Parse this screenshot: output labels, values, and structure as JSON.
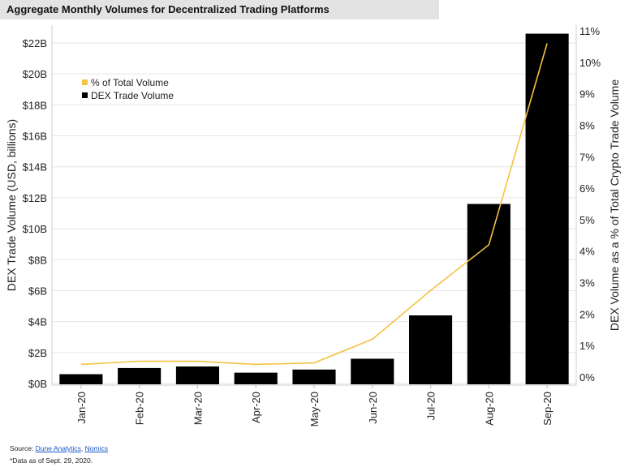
{
  "title": "Aggregate Monthly Volumes for Decentralized Trading Platforms",
  "footer": {
    "source_prefix": "Source: ",
    "source_1": "Dune Analytics",
    "source_sep": ", ",
    "source_2": "Nomics",
    "note": "*Data as of Sept. 29, 2020."
  },
  "chart_data": {
    "type": "bar",
    "categories": [
      "Jan-20",
      "Feb-20",
      "Mar-20",
      "Apr-20",
      "May-20",
      "Jun-20",
      "Jul-20",
      "Aug-20",
      "Sep-20"
    ],
    "series": [
      {
        "name": "DEX Trade Volume",
        "kind": "bar",
        "axis": "left",
        "color": "#000000",
        "values": [
          0.6,
          1.0,
          1.1,
          0.7,
          0.9,
          1.6,
          4.4,
          11.6,
          22.6
        ]
      },
      {
        "name": "% of Total Volume",
        "kind": "line",
        "axis": "right",
        "color": "#f5c242",
        "values": [
          0.4,
          0.5,
          0.5,
          0.4,
          0.45,
          1.2,
          2.75,
          4.2,
          10.6
        ]
      }
    ],
    "ylabel": "DEX Trade Volume (USD, billions)",
    "y2label": "DEX Volume as a % of Total Crypto Trade Volume",
    "ylim": [
      0,
      23
    ],
    "y2lim": [
      0,
      11
    ],
    "yticks": [
      0,
      2,
      4,
      6,
      8,
      10,
      12,
      14,
      16,
      18,
      20,
      22
    ],
    "ytick_labels": [
      "$0B",
      "$2B",
      "$4B",
      "$6B",
      "$8B",
      "$10B",
      "$12B",
      "$14B",
      "$16B",
      "$18B",
      "$20B",
      "$22B"
    ],
    "y2ticks": [
      0,
      1,
      2,
      3,
      4,
      5,
      6,
      7,
      8,
      9,
      10,
      11
    ],
    "y2tick_labels": [
      "0%",
      "1%",
      "2%",
      "3%",
      "4%",
      "5%",
      "6%",
      "7%",
      "8%",
      "9%",
      "10%",
      "11%"
    ],
    "legend_position": "top-left",
    "grid": "horizontal"
  }
}
